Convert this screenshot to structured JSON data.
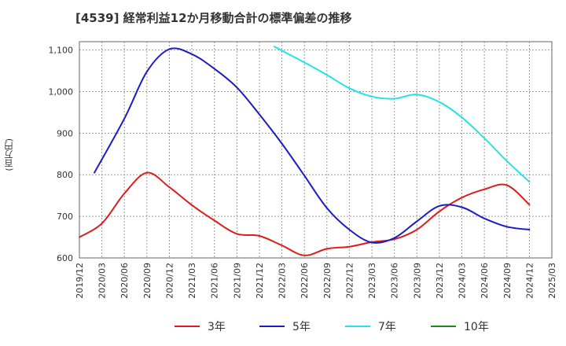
{
  "chart_data": {
    "type": "line",
    "title": "[4539]  経常利益12か月移動合計の標準偏差の推移",
    "y_unit_label": "(百万円)",
    "ylim": [
      600,
      1120
    ],
    "y_ticks": [
      "600",
      "700",
      "800",
      "900",
      "1,000",
      "1,100"
    ],
    "y_tick_values": [
      600,
      700,
      800,
      900,
      1000,
      1100
    ],
    "x_ticks": [
      "2019/12",
      "2020/03",
      "2020/06",
      "2020/09",
      "2020/12",
      "2021/03",
      "2021/06",
      "2021/09",
      "2021/12",
      "2022/03",
      "2022/06",
      "2022/09",
      "2022/12",
      "2023/03",
      "2023/06",
      "2023/09",
      "2023/12",
      "2024/03",
      "2024/06",
      "2024/09",
      "2024/12",
      "2025/03"
    ],
    "grid": true,
    "legend_position": "bottom",
    "series": [
      {
        "name": "3年",
        "color": "#dd1c1c",
        "points": [
          [
            "2019/12",
            650
          ],
          [
            "2020/03",
            683
          ],
          [
            "2020/06",
            755
          ],
          [
            "2020/09",
            805
          ],
          [
            "2020/12",
            770
          ],
          [
            "2021/03",
            727
          ],
          [
            "2021/06",
            690
          ],
          [
            "2021/09",
            658
          ],
          [
            "2021/12",
            653
          ],
          [
            "2022/03",
            630
          ],
          [
            "2022/06",
            606
          ],
          [
            "2022/09",
            622
          ],
          [
            "2022/12",
            627
          ],
          [
            "2023/03",
            638
          ],
          [
            "2023/06",
            645
          ],
          [
            "2023/09",
            668
          ],
          [
            "2023/12",
            712
          ],
          [
            "2024/03",
            745
          ],
          [
            "2024/06",
            765
          ],
          [
            "2024/09",
            775
          ],
          [
            "2024/12",
            728
          ]
        ]
      },
      {
        "name": "5年",
        "color": "#1c1cc6",
        "points": [
          [
            "2020/02",
            805
          ],
          [
            "2020/06",
            935
          ],
          [
            "2020/09",
            1048
          ],
          [
            "2020/12",
            1102
          ],
          [
            "2021/03",
            1090
          ],
          [
            "2021/06",
            1055
          ],
          [
            "2021/09",
            1010
          ],
          [
            "2021/12",
            945
          ],
          [
            "2022/03",
            875
          ],
          [
            "2022/06",
            798
          ],
          [
            "2022/09",
            720
          ],
          [
            "2022/12",
            668
          ],
          [
            "2023/03",
            637
          ],
          [
            "2023/06",
            648
          ],
          [
            "2023/09",
            688
          ],
          [
            "2023/12",
            725
          ],
          [
            "2024/03",
            722
          ],
          [
            "2024/06",
            695
          ],
          [
            "2024/09",
            675
          ],
          [
            "2024/12",
            668
          ]
        ]
      },
      {
        "name": "7年",
        "color": "#22e4e4",
        "points": [
          [
            "2022/02",
            1108
          ],
          [
            "2022/06",
            1070
          ],
          [
            "2022/09",
            1040
          ],
          [
            "2022/12",
            1008
          ],
          [
            "2023/03",
            988
          ],
          [
            "2023/06",
            983
          ],
          [
            "2023/09",
            993
          ],
          [
            "2023/12",
            975
          ],
          [
            "2024/03",
            938
          ],
          [
            "2024/06",
            888
          ],
          [
            "2024/09",
            833
          ],
          [
            "2024/12",
            783
          ]
        ]
      },
      {
        "name": "10年",
        "color": "#1a8a1a",
        "points": []
      }
    ]
  }
}
